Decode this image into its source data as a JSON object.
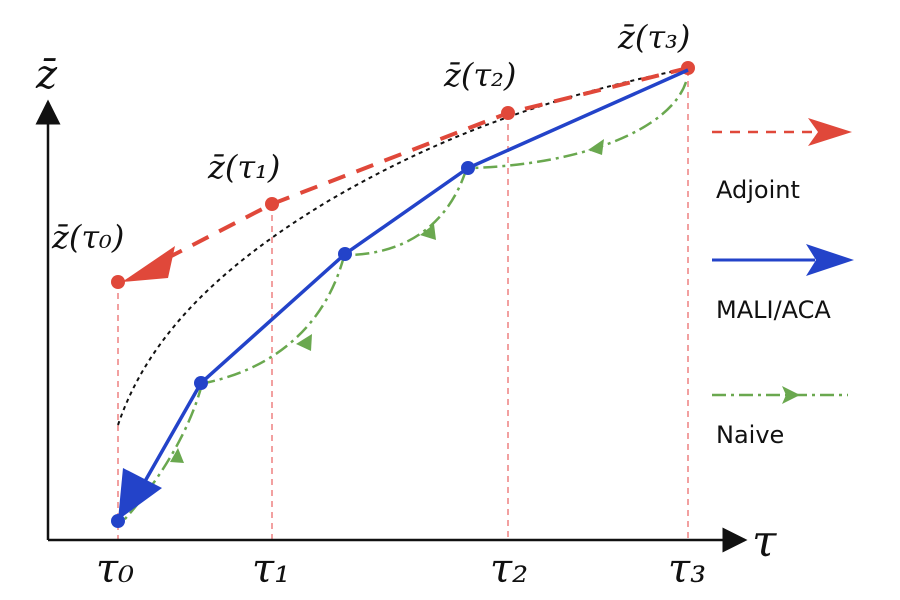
{
  "axes": {
    "y_label": "z̄",
    "x_label": "τ",
    "ticks": [
      "τ₀",
      "τ₁",
      "τ₂",
      "τ₃"
    ]
  },
  "points": {
    "adjoint": [
      "z̄(τ₀)",
      "z̄(τ₁)",
      "z̄(τ₂)",
      "z̄(τ₃)"
    ]
  },
  "legend": [
    {
      "label": "Adjoint",
      "color": "#e0483a",
      "style": "dashed-arrow"
    },
    {
      "label": "MALI/ACA",
      "color": "#2343c9",
      "style": "solid-arrow"
    },
    {
      "label": "Naive",
      "color": "#6aa84f",
      "style": "dashdot-arrow"
    }
  ],
  "colors": {
    "adjoint": "#e0483a",
    "mali": "#2343c9",
    "naive": "#6aa84f",
    "guide": "#f2a0a0",
    "true_trajectory": "#111111"
  }
}
